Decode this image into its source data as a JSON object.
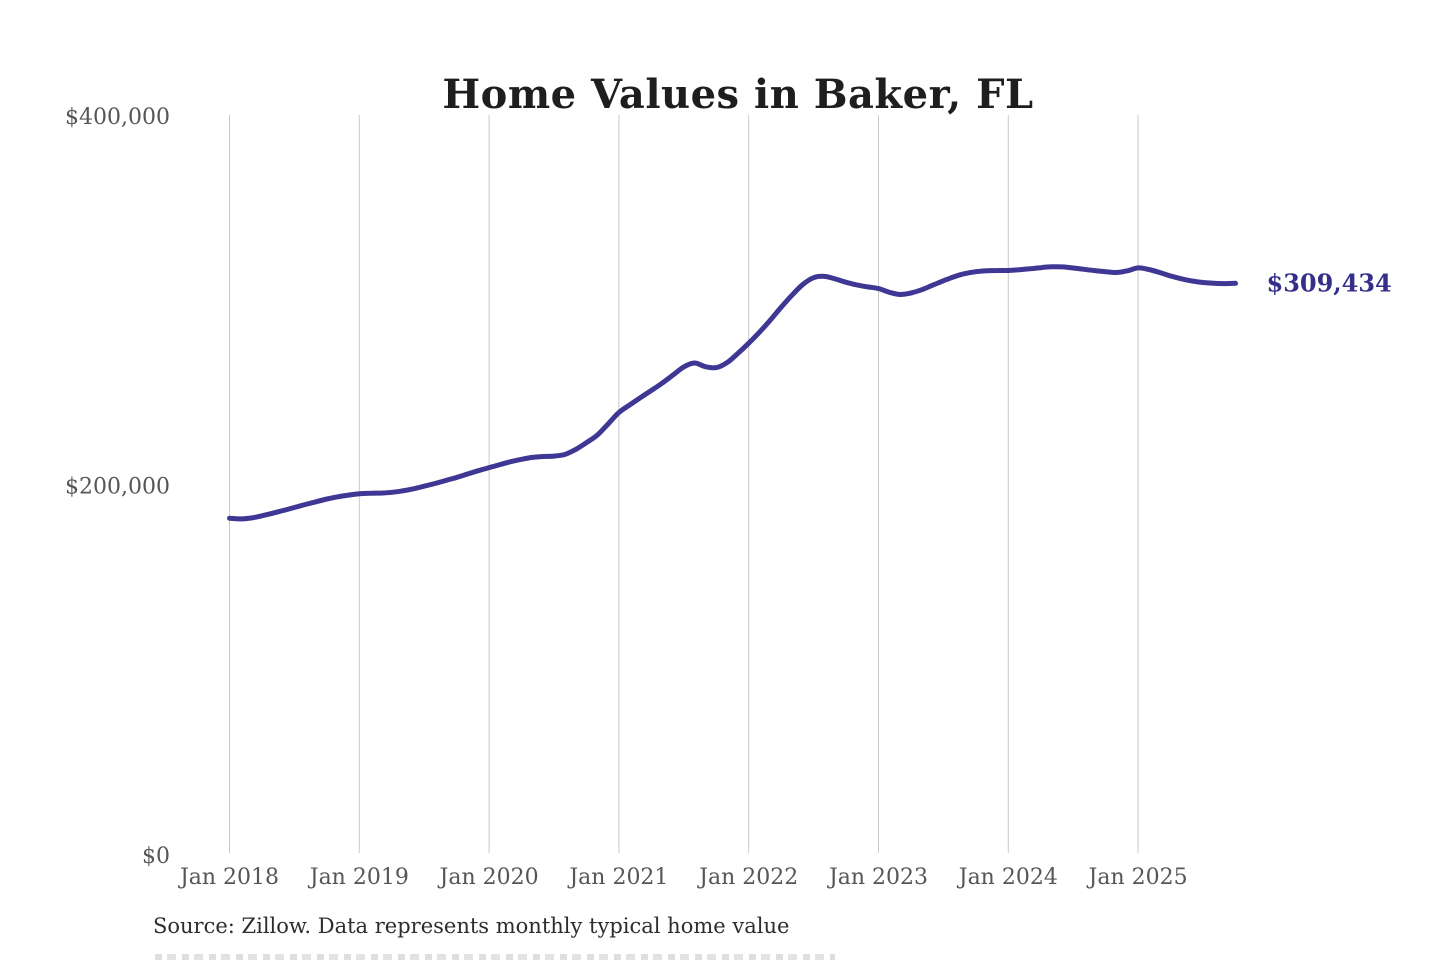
{
  "title": "Home Values in Baker, FL",
  "source_note": "Source: Zillow. Data represents monthly typical home value",
  "end_label": "$309,434",
  "colors": {
    "background": "#ffffff",
    "line": "#3e3794",
    "end_label": "#362f8a",
    "title": "#1e1e1e",
    "axis_label": "#565656",
    "gridline": "#c9c9c9",
    "source_text": "#2d2d2d"
  },
  "chart_data": {
    "type": "line",
    "title": "Home Values in Baker, FL",
    "unit": "USD",
    "frequency": "monthly",
    "start_month": "Jan 2018",
    "end_month": "Oct 2025",
    "final_value": 309434,
    "final_value_label": "$309,434",
    "ylim": [
      0,
      400000
    ],
    "grid": "vertical-yearly",
    "legend": "none",
    "xlabel": "",
    "ylabel": "",
    "y_ticks": [
      {
        "label": "$400,000",
        "value": 400000
      },
      {
        "label": "$200,000",
        "value": 200000
      },
      {
        "label": "$0",
        "value": 0
      }
    ],
    "x_tick_labels": [
      "Jan 2018",
      "Jan 2019",
      "Jan 2020",
      "Jan 2021",
      "Jan 2022",
      "Jan 2023",
      "Jan 2024",
      "Jan 2025"
    ],
    "values": [
      182300,
      181900,
      182400,
      183600,
      185000,
      186500,
      188100,
      189700,
      191200,
      192700,
      193900,
      194800,
      195500,
      195800,
      195900,
      196300,
      197100,
      198200,
      199600,
      201100,
      202700,
      204400,
      206200,
      208000,
      209700,
      211300,
      212900,
      214200,
      215200,
      215700,
      215900,
      216800,
      219500,
      223200,
      227300,
      233300,
      239500,
      243600,
      247600,
      251500,
      255400,
      259800,
      264200,
      266300,
      264300,
      263800,
      266500,
      271500,
      277000,
      283000,
      289500,
      296500,
      303000,
      308800,
      312500,
      313200,
      311800,
      310000,
      308600,
      307500,
      306600,
      304600,
      303400,
      304200,
      306000,
      308400,
      310800,
      313000,
      314700,
      315700,
      316200,
      316400,
      316400,
      316800,
      317300,
      317900,
      318400,
      318300,
      317700,
      317000,
      316300,
      315700,
      315300,
      316200,
      317800,
      316900,
      315300,
      313400,
      311900,
      310700,
      309900,
      309500,
      309300,
      309434
    ]
  }
}
